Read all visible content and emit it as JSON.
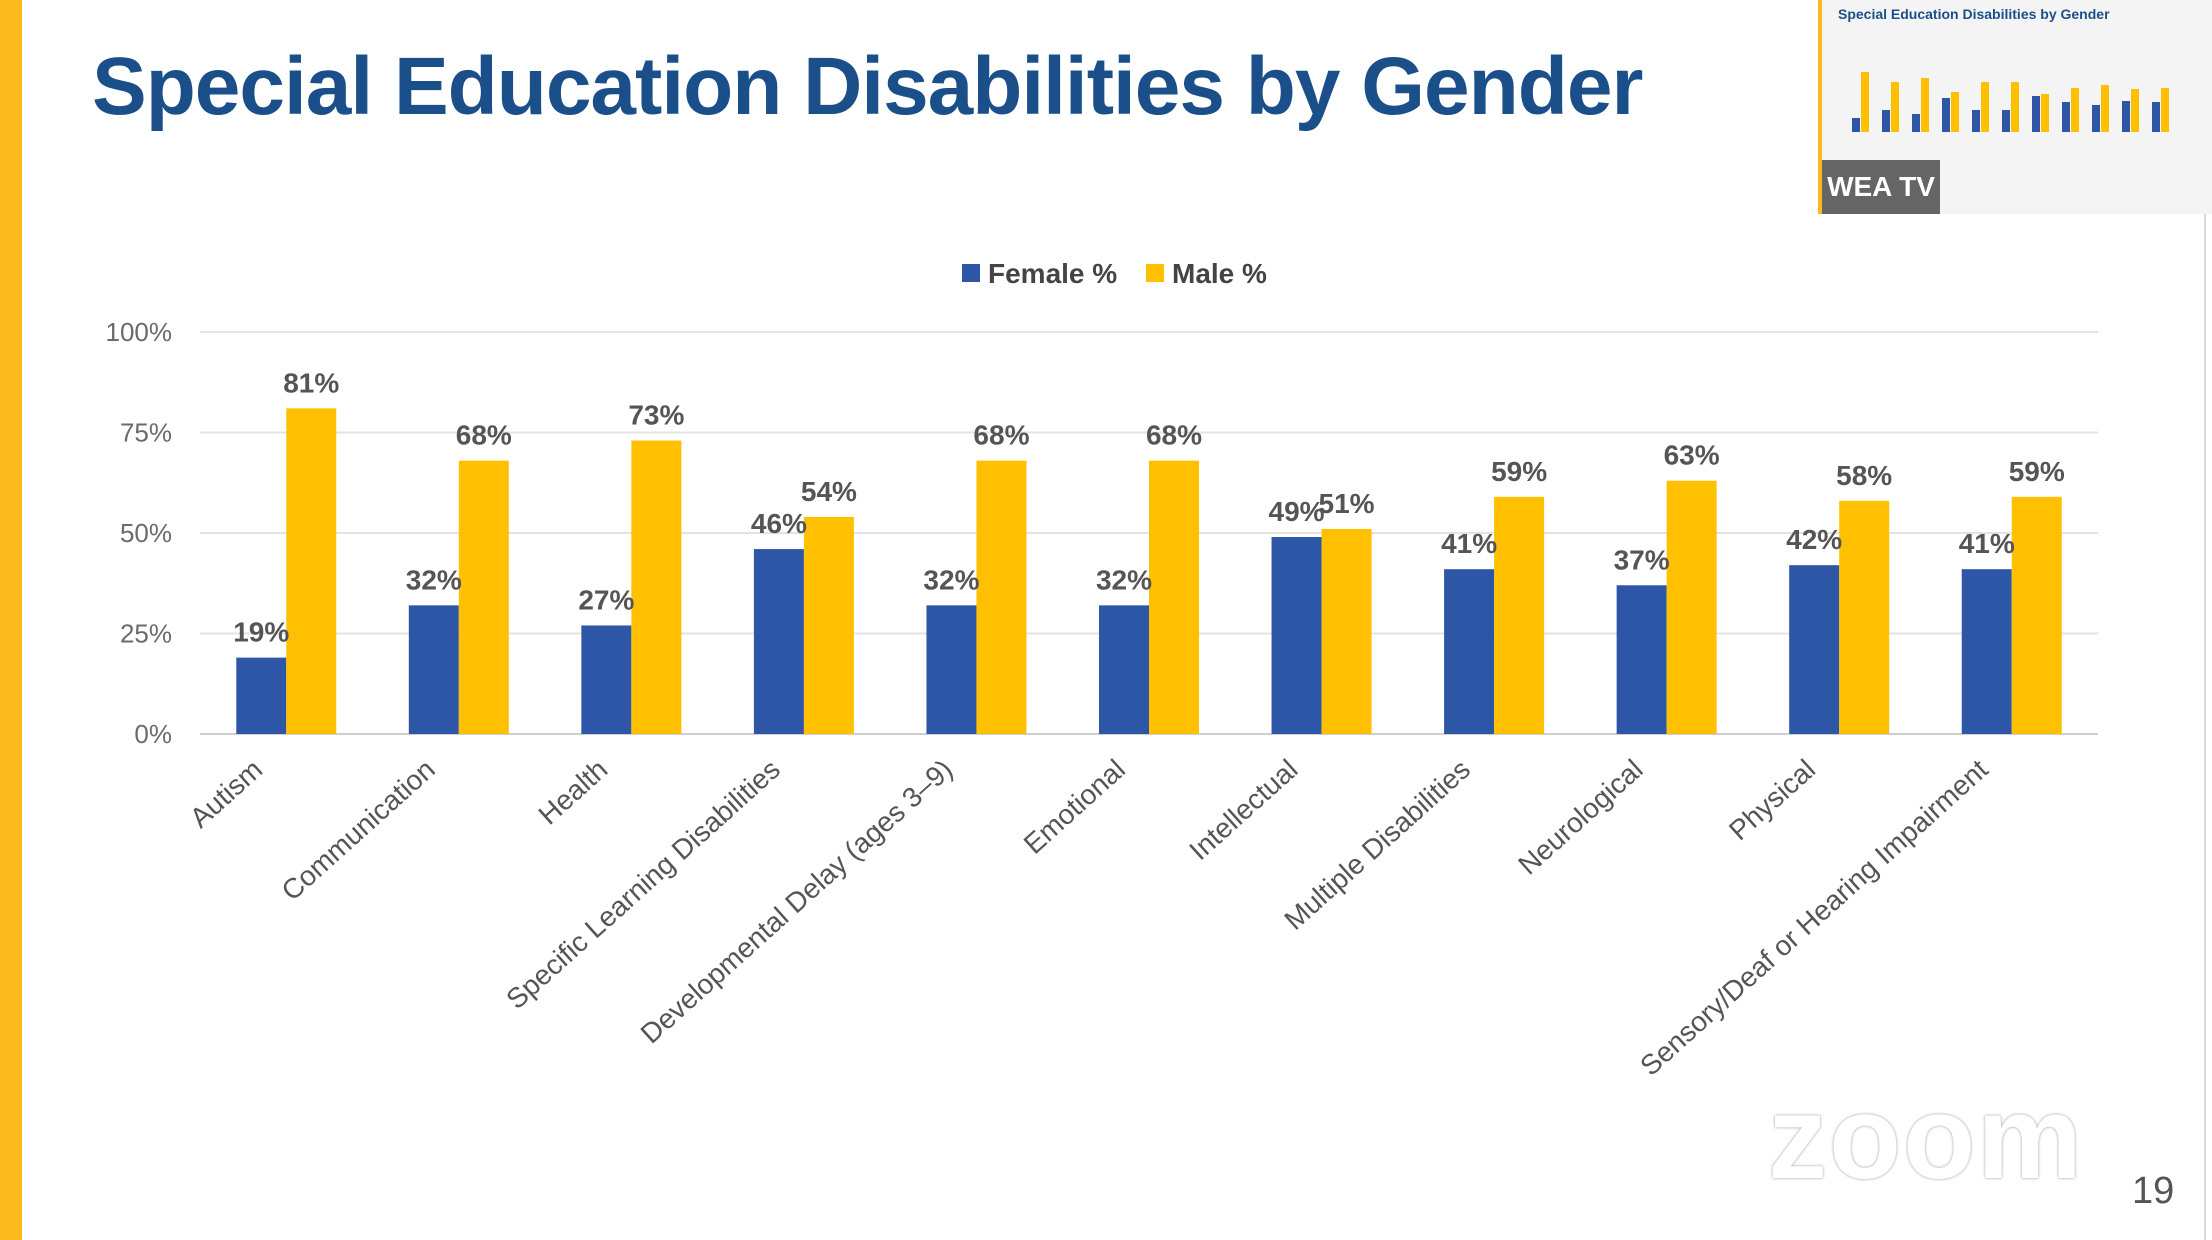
{
  "slide": {
    "title": "Special Education Disabilities by Gender",
    "page_number": "19",
    "accent_color": "#fbba1d",
    "title_color": "#1b4f8a"
  },
  "thumbnail": {
    "title": "Special Education Disabilities by Gender",
    "participant_label": "WEA TV"
  },
  "watermark": "zoom",
  "chart_data": {
    "type": "bar",
    "title": "",
    "xlabel": "",
    "ylabel": "",
    "categories": [
      "Autism",
      "Communication",
      "Health",
      "Specific Learning Disabilities",
      "Developmental Delay (ages 3–9)",
      "Emotional",
      "Intellectual",
      "Multiple Disabilities",
      "Neurological",
      "Physical",
      "Sensory/Deaf or Hearing Impairment"
    ],
    "series": [
      {
        "name": "Female %",
        "color": "#2e56a6",
        "values": [
          19,
          32,
          27,
          46,
          32,
          32,
          49,
          41,
          37,
          42,
          41
        ]
      },
      {
        "name": "Male %",
        "color": "#fec000",
        "values": [
          81,
          68,
          73,
          54,
          68,
          68,
          51,
          59,
          63,
          58,
          59
        ]
      }
    ],
    "data_labels": [
      [
        "19%",
        "32%",
        "27%",
        "46%",
        "32%",
        "32%",
        "49%",
        "41%",
        "37%",
        "42%",
        "41%"
      ],
      [
        "81%",
        "68%",
        "73%",
        "54%",
        "68%",
        "68%",
        "51%",
        "59%",
        "63%",
        "58%",
        "59%"
      ]
    ],
    "ylim": [
      0,
      100
    ],
    "yticks": [
      0,
      25,
      50,
      75,
      100
    ],
    "ytick_labels": [
      "0%",
      "25%",
      "50%",
      "75%",
      "100%"
    ],
    "grid": true,
    "legend_position": "top-center"
  }
}
